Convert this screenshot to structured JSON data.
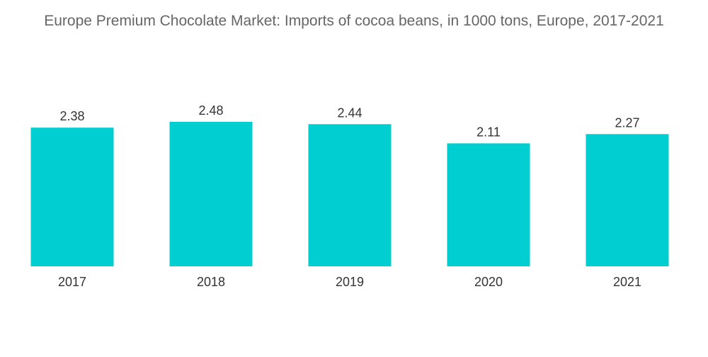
{
  "chart_data": {
    "type": "bar",
    "title": "Europe Premium Chocolate Market: Imports of cocoa beans, in 1000 tons, Europe, 2017-2021",
    "categories": [
      "2017",
      "2018",
      "2019",
      "2020",
      "2021"
    ],
    "values": [
      2.38,
      2.48,
      2.44,
      2.11,
      2.27
    ],
    "value_labels": [
      "2.38",
      "2.48",
      "2.44",
      "2.11",
      "2.27"
    ],
    "xlabel": "",
    "ylabel": "",
    "ylim": [
      0,
      2.48
    ],
    "grid": false,
    "legend": "none",
    "bar_color": "#00CED1"
  }
}
